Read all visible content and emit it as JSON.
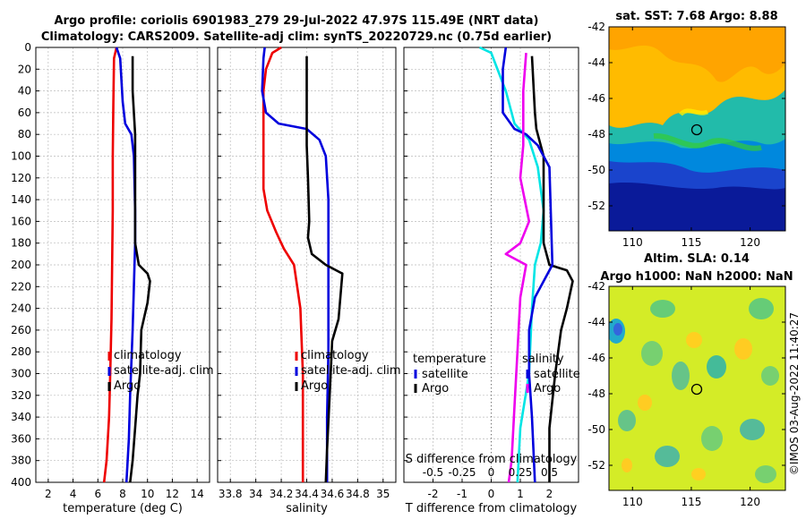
{
  "title": {
    "line1": "Argo profile: coriolis 6901983_279 29-Jul-2022 47.97S 115.49E (NRT data)",
    "line2": "Climatology: CARS2009. Satellite-adj clim: synTS_20220729.nc (0.75d earlier)"
  },
  "colors": {
    "climatology": "#ee0000",
    "satellite": "#0000dd",
    "argo": "#000000",
    "temp_sat": "#00e5e5",
    "sal_clim": "#ee00ee"
  },
  "chart_data": [
    {
      "id": "temperature",
      "type": "line",
      "xlabel": "temperature (deg C)",
      "ylabel": "",
      "xlim": [
        1,
        15
      ],
      "ylim": [
        400,
        0
      ],
      "xticks": [
        2,
        4,
        6,
        8,
        10,
        12,
        14
      ],
      "yticks": [
        0,
        20,
        40,
        60,
        80,
        100,
        120,
        140,
        160,
        180,
        200,
        220,
        240,
        260,
        280,
        300,
        320,
        340,
        360,
        380,
        400
      ],
      "legend": [
        "climatology",
        "satellite-adj. clim",
        "Argo"
      ],
      "series": [
        {
          "name": "climatology",
          "color": "#ee0000",
          "points": [
            [
              7.5,
              0
            ],
            [
              7.3,
              10
            ],
            [
              7.25,
              50
            ],
            [
              7.2,
              100
            ],
            [
              7.2,
              150
            ],
            [
              7.15,
              200
            ],
            [
              7.1,
              250
            ],
            [
              7.0,
              300
            ],
            [
              6.9,
              340
            ],
            [
              6.7,
              380
            ],
            [
              6.5,
              400
            ]
          ]
        },
        {
          "name": "satellite-adj. clim",
          "color": "#0000dd",
          "points": [
            [
              7.5,
              0
            ],
            [
              7.8,
              10
            ],
            [
              8.0,
              50
            ],
            [
              8.2,
              70
            ],
            [
              8.7,
              80
            ],
            [
              8.9,
              100
            ],
            [
              9.0,
              150
            ],
            [
              9.0,
              180
            ],
            [
              8.9,
              220
            ],
            [
              8.8,
              260
            ],
            [
              8.6,
              320
            ],
            [
              8.5,
              360
            ],
            [
              8.3,
              400
            ]
          ]
        },
        {
          "name": "Argo",
          "color": "#000000",
          "points": [
            [
              8.8,
              8
            ],
            [
              8.8,
              40
            ],
            [
              8.9,
              60
            ],
            [
              9.0,
              80
            ],
            [
              9.0,
              180
            ],
            [
              9.3,
              200
            ],
            [
              10.0,
              208
            ],
            [
              10.2,
              215
            ],
            [
              10.0,
              235
            ],
            [
              9.8,
              245
            ],
            [
              9.5,
              260
            ],
            [
              9.4,
              300
            ],
            [
              9.2,
              320
            ],
            [
              9.0,
              350
            ],
            [
              8.8,
              380
            ],
            [
              8.6,
              400
            ]
          ]
        }
      ]
    },
    {
      "id": "salinity",
      "type": "line",
      "xlabel": "salinity",
      "xlim": [
        33.7,
        35.1
      ],
      "ylim": [
        400,
        0
      ],
      "xticks": [
        33.8,
        34,
        34.2,
        34.4,
        34.6,
        34.8,
        35
      ],
      "legend": [
        "climatology",
        "satellite-adj. clim",
        "Argo"
      ],
      "series": [
        {
          "name": "climatology",
          "color": "#ee0000",
          "points": [
            [
              34.2,
              0
            ],
            [
              34.13,
              5
            ],
            [
              34.08,
              20
            ],
            [
              34.06,
              40
            ],
            [
              34.06,
              80
            ],
            [
              34.06,
              130
            ],
            [
              34.09,
              150
            ],
            [
              34.16,
              170
            ],
            [
              34.22,
              185
            ],
            [
              34.3,
              200
            ],
            [
              34.35,
              240
            ],
            [
              34.37,
              300
            ],
            [
              34.37,
              400
            ]
          ]
        },
        {
          "name": "satellite-adj. clim",
          "color": "#0000dd",
          "points": [
            [
              34.07,
              0
            ],
            [
              34.06,
              10
            ],
            [
              34.05,
              40
            ],
            [
              34.08,
              60
            ],
            [
              34.18,
              70
            ],
            [
              34.4,
              75
            ],
            [
              34.5,
              85
            ],
            [
              34.55,
              100
            ],
            [
              34.57,
              140
            ],
            [
              34.57,
              200
            ],
            [
              34.57,
              280
            ],
            [
              34.56,
              340
            ],
            [
              34.56,
              400
            ]
          ]
        },
        {
          "name": "Argo",
          "color": "#000000",
          "points": [
            [
              34.4,
              8
            ],
            [
              34.4,
              90
            ],
            [
              34.41,
              120
            ],
            [
              34.42,
              160
            ],
            [
              34.41,
              175
            ],
            [
              34.44,
              190
            ],
            [
              34.55,
              200
            ],
            [
              34.68,
              208
            ],
            [
              34.65,
              250
            ],
            [
              34.6,
              270
            ],
            [
              34.58,
              320
            ],
            [
              34.56,
              370
            ],
            [
              34.55,
              400
            ]
          ]
        }
      ]
    },
    {
      "id": "difference",
      "type": "line",
      "xlabel": "T difference from climatology",
      "xlabel_top": "S difference from climatology",
      "xlim": [
        -3,
        3
      ],
      "ylim": [
        400,
        0
      ],
      "xticks": [
        -2,
        -1,
        0,
        1,
        2
      ],
      "xticks_s_labels": [
        "-0.5",
        "-0.25",
        "0",
        "0.25",
        "0.5"
      ],
      "legend_left_title": "temperature",
      "legend_left": [
        "satellite",
        "Argo"
      ],
      "legend_right_title": "salinity",
      "legend_right": [
        "satellite",
        "Argo"
      ],
      "series": [
        {
          "name": "temperature satellite",
          "color": "#00e5e5",
          "points": [
            [
              -0.4,
              0
            ],
            [
              0,
              5
            ],
            [
              0.5,
              40
            ],
            [
              0.8,
              70
            ],
            [
              1.3,
              85
            ],
            [
              1.6,
              110
            ],
            [
              1.8,
              150
            ],
            [
              1.7,
              180
            ],
            [
              1.5,
              200
            ],
            [
              1.4,
              240
            ],
            [
              1.3,
              300
            ],
            [
              1.0,
              350
            ],
            [
              0.9,
              400
            ]
          ]
        },
        {
          "name": "temperature Argo",
          "color": "#000000",
          "points": [
            [
              1.4,
              8
            ],
            [
              1.5,
              60
            ],
            [
              1.55,
              75
            ],
            [
              1.8,
              100
            ],
            [
              1.8,
              180
            ],
            [
              2.0,
              200
            ],
            [
              2.6,
              205
            ],
            [
              2.8,
              215
            ],
            [
              2.6,
              240
            ],
            [
              2.4,
              260
            ],
            [
              2.2,
              300
            ],
            [
              2.0,
              350
            ],
            [
              2.0,
              400
            ]
          ]
        },
        {
          "name": "salinity satellite",
          "color": "#0000dd",
          "points": [
            [
              0.5,
              0
            ],
            [
              0.4,
              20
            ],
            [
              0.4,
              60
            ],
            [
              0.8,
              75
            ],
            [
              1.2,
              80
            ],
            [
              1.6,
              90
            ],
            [
              2.0,
              110
            ],
            [
              2.1,
              200
            ],
            [
              1.5,
              230
            ],
            [
              1.3,
              260
            ],
            [
              1.3,
              300
            ],
            [
              1.4,
              340
            ],
            [
              1.5,
              400
            ]
          ]
        },
        {
          "name": "salinity Argo",
          "color": "#ee00ee",
          "points": [
            [
              1.2,
              5
            ],
            [
              1.1,
              40
            ],
            [
              1.1,
              90
            ],
            [
              1.0,
              120
            ],
            [
              1.3,
              160
            ],
            [
              1.0,
              180
            ],
            [
              0.5,
              190
            ],
            [
              1.2,
              200
            ],
            [
              1.0,
              230
            ],
            [
              0.9,
              280
            ],
            [
              0.8,
              330
            ],
            [
              0.7,
              380
            ],
            [
              0.6,
              400
            ]
          ]
        }
      ]
    }
  ],
  "maps": [
    {
      "id": "sst",
      "title": "sat. SST: 7.68 Argo: 8.88",
      "xticks": [
        "110",
        "115",
        "120"
      ],
      "yticks": [
        "-42",
        "-44",
        "-46",
        "-48",
        "-50",
        "-52"
      ]
    },
    {
      "id": "sla",
      "title1": "Altim. SLA: 0.14",
      "title2": "Argo h1000: NaN h2000: NaN",
      "xticks": [
        "110",
        "115",
        "120"
      ],
      "yticks": [
        "-42",
        "-44",
        "-46",
        "-48",
        "-50",
        "-52"
      ]
    }
  ],
  "credit": "©IMOS 03-Aug-2022 11:40:27"
}
